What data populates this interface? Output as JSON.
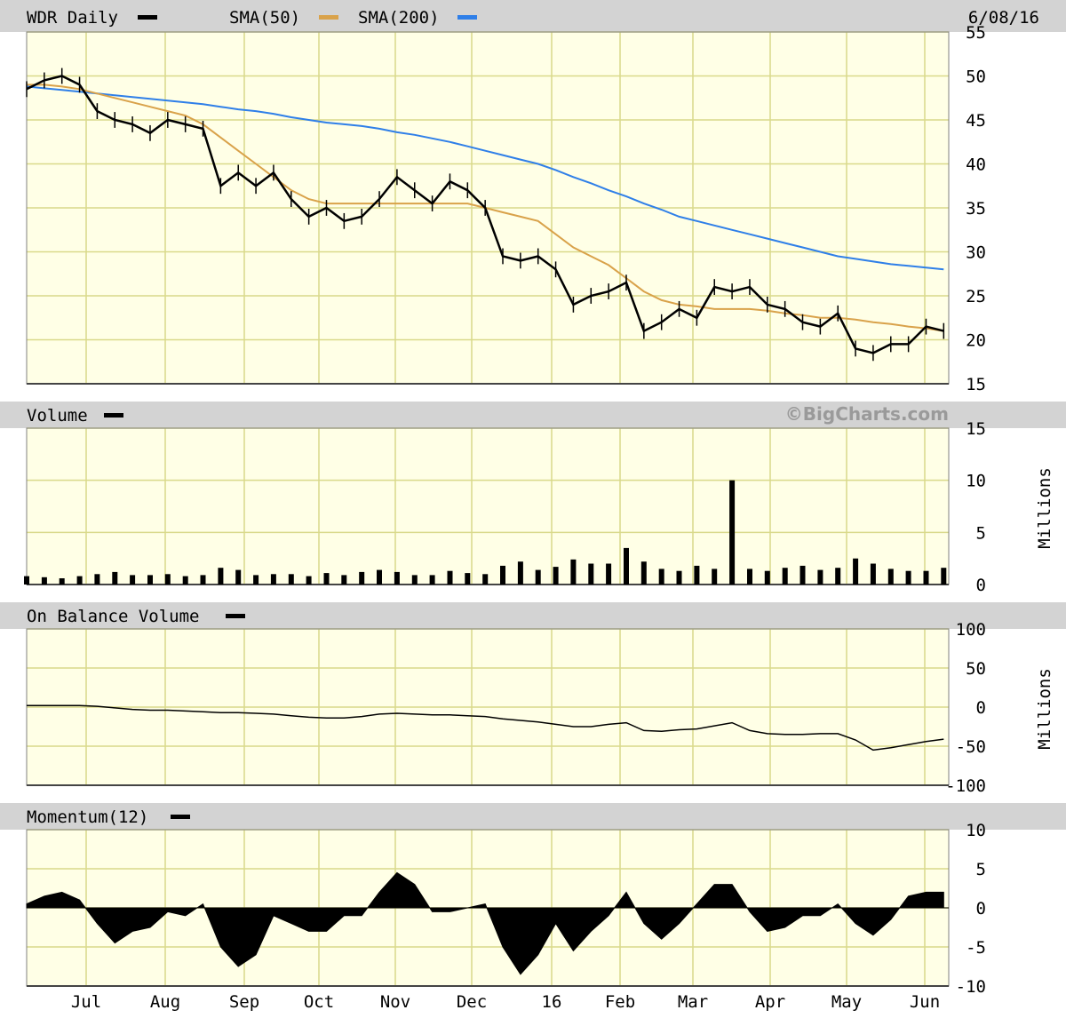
{
  "header": {
    "symbol_label": "WDR Daily",
    "sma50_label": "SMA(50)",
    "sma200_label": "SMA(200)",
    "date": "6/08/16",
    "colors": {
      "price": "#000000",
      "sma50": "#d9a24a",
      "sma200": "#2f7fe8"
    }
  },
  "panels": {
    "volume_title": "Volume",
    "watermark": "©BigCharts.com",
    "obv_title": "On Balance Volume",
    "momentum_title": "Momentum(12)",
    "units_label": "Millions"
  },
  "x_axis": {
    "months": [
      "Jul",
      "Aug",
      "Sep",
      "Oct",
      "Nov",
      "Dec",
      "16",
      "Feb",
      "Mar",
      "Apr",
      "May",
      "Jun"
    ]
  },
  "chart_data": [
    {
      "type": "line",
      "title": "WDR Daily",
      "ylim": [
        15,
        55
      ],
      "yticks": [
        15,
        20,
        25,
        30,
        35,
        40,
        45,
        50,
        55
      ],
      "x": [
        "2015-06-08",
        "2015-06-15",
        "2015-06-22",
        "2015-06-29",
        "2015-07-06",
        "2015-07-13",
        "2015-07-20",
        "2015-07-27",
        "2015-08-03",
        "2015-08-10",
        "2015-08-17",
        "2015-08-24",
        "2015-08-31",
        "2015-09-07",
        "2015-09-14",
        "2015-09-21",
        "2015-09-28",
        "2015-10-05",
        "2015-10-12",
        "2015-10-19",
        "2015-10-26",
        "2015-11-02",
        "2015-11-09",
        "2015-11-16",
        "2015-11-23",
        "2015-11-30",
        "2015-12-07",
        "2015-12-14",
        "2015-12-21",
        "2015-12-28",
        "2016-01-04",
        "2016-01-11",
        "2016-01-18",
        "2016-01-25",
        "2016-02-01",
        "2016-02-08",
        "2016-02-15",
        "2016-02-22",
        "2016-02-29",
        "2016-03-07",
        "2016-03-14",
        "2016-03-21",
        "2016-03-28",
        "2016-04-04",
        "2016-04-11",
        "2016-04-18",
        "2016-04-25",
        "2016-05-02",
        "2016-05-09",
        "2016-05-16",
        "2016-05-23",
        "2016-05-30",
        "2016-06-06"
      ],
      "series": [
        {
          "name": "WDR Daily",
          "values": [
            48.5,
            49.5,
            50.0,
            49.0,
            46.0,
            45.0,
            44.5,
            43.5,
            45.0,
            44.5,
            44.0,
            37.5,
            39.0,
            37.5,
            39.0,
            36.0,
            34.0,
            35.0,
            33.5,
            34.0,
            36.0,
            38.5,
            37.0,
            35.5,
            38.0,
            37.0,
            35.0,
            29.5,
            29.0,
            29.5,
            28.0,
            24.0,
            25.0,
            25.5,
            26.5,
            21.0,
            22.0,
            23.5,
            22.5,
            26.0,
            25.5,
            26.0,
            24.0,
            23.5,
            22.0,
            21.5,
            23.0,
            19.0,
            18.5,
            19.5,
            19.5,
            21.5,
            21.0
          ]
        },
        {
          "name": "SMA(50)",
          "values": [
            49.0,
            49.0,
            48.8,
            48.5,
            48.0,
            47.5,
            47.0,
            46.5,
            46.0,
            45.5,
            44.5,
            43.0,
            41.5,
            40.0,
            38.5,
            37.0,
            36.0,
            35.5,
            35.5,
            35.5,
            35.5,
            35.5,
            35.5,
            35.5,
            35.5,
            35.5,
            35.0,
            34.5,
            34.0,
            33.5,
            32.0,
            30.5,
            29.5,
            28.5,
            27.0,
            25.5,
            24.5,
            24.0,
            23.8,
            23.5,
            23.5,
            23.5,
            23.3,
            23.0,
            22.8,
            22.5,
            22.5,
            22.3,
            22.0,
            21.8,
            21.5,
            21.3,
            21.0
          ]
        },
        {
          "name": "SMA(200)",
          "values": [
            48.8,
            48.6,
            48.4,
            48.2,
            48.0,
            47.8,
            47.6,
            47.4,
            47.2,
            47.0,
            46.8,
            46.5,
            46.2,
            46.0,
            45.7,
            45.3,
            45.0,
            44.7,
            44.5,
            44.3,
            44.0,
            43.6,
            43.3,
            42.9,
            42.5,
            42.0,
            41.5,
            41.0,
            40.5,
            40.0,
            39.3,
            38.5,
            37.8,
            37.0,
            36.3,
            35.5,
            34.8,
            34.0,
            33.5,
            33.0,
            32.5,
            32.0,
            31.5,
            31.0,
            30.5,
            30.0,
            29.5,
            29.2,
            28.9,
            28.6,
            28.4,
            28.2,
            28.0
          ]
        }
      ]
    },
    {
      "type": "bar",
      "title": "Volume",
      "ylabel": "Millions",
      "ylim": [
        0,
        15
      ],
      "yticks": [
        0,
        5,
        10,
        15
      ],
      "x": [
        "2015-06-08",
        "2015-06-15",
        "2015-06-22",
        "2015-06-29",
        "2015-07-06",
        "2015-07-13",
        "2015-07-20",
        "2015-07-27",
        "2015-08-03",
        "2015-08-10",
        "2015-08-17",
        "2015-08-24",
        "2015-08-31",
        "2015-09-07",
        "2015-09-14",
        "2015-09-21",
        "2015-09-28",
        "2015-10-05",
        "2015-10-12",
        "2015-10-19",
        "2015-10-26",
        "2015-11-02",
        "2015-11-09",
        "2015-11-16",
        "2015-11-23",
        "2015-11-30",
        "2015-12-07",
        "2015-12-14",
        "2015-12-21",
        "2015-12-28",
        "2016-01-04",
        "2016-01-11",
        "2016-01-18",
        "2016-01-25",
        "2016-02-01",
        "2016-02-08",
        "2016-02-15",
        "2016-02-22",
        "2016-02-29",
        "2016-03-07",
        "2016-03-14",
        "2016-03-21",
        "2016-03-28",
        "2016-04-04",
        "2016-04-11",
        "2016-04-18",
        "2016-04-25",
        "2016-05-02",
        "2016-05-09",
        "2016-05-16",
        "2016-05-23",
        "2016-05-30",
        "2016-06-06"
      ],
      "series": [
        {
          "name": "Volume",
          "values": [
            0.8,
            0.7,
            0.6,
            0.8,
            1.0,
            1.2,
            0.9,
            0.9,
            1.0,
            0.8,
            0.9,
            1.6,
            1.4,
            0.9,
            1.0,
            1.0,
            0.8,
            1.1,
            0.9,
            1.2,
            1.4,
            1.2,
            0.9,
            0.9,
            1.3,
            1.1,
            1.0,
            1.8,
            2.2,
            1.4,
            1.7,
            2.4,
            2.0,
            2.0,
            3.5,
            2.2,
            1.5,
            1.3,
            1.8,
            1.5,
            10.0,
            1.5,
            1.3,
            1.6,
            1.8,
            1.4,
            1.6,
            2.5,
            2.0,
            1.5,
            1.3,
            1.3,
            1.6
          ]
        }
      ]
    },
    {
      "type": "line",
      "title": "On Balance Volume",
      "ylabel": "Millions",
      "ylim": [
        -100,
        100
      ],
      "yticks": [
        -100,
        -50,
        0,
        50,
        100
      ],
      "x": [
        "2015-06-08",
        "2015-06-15",
        "2015-06-22",
        "2015-06-29",
        "2015-07-06",
        "2015-07-13",
        "2015-07-20",
        "2015-07-27",
        "2015-08-03",
        "2015-08-10",
        "2015-08-17",
        "2015-08-24",
        "2015-08-31",
        "2015-09-07",
        "2015-09-14",
        "2015-09-21",
        "2015-09-28",
        "2015-10-05",
        "2015-10-12",
        "2015-10-19",
        "2015-10-26",
        "2015-11-02",
        "2015-11-09",
        "2015-11-16",
        "2015-11-23",
        "2015-11-30",
        "2015-12-07",
        "2015-12-14",
        "2015-12-21",
        "2015-12-28",
        "2016-01-04",
        "2016-01-11",
        "2016-01-18",
        "2016-01-25",
        "2016-02-01",
        "2016-02-08",
        "2016-02-15",
        "2016-02-22",
        "2016-02-29",
        "2016-03-07",
        "2016-03-14",
        "2016-03-21",
        "2016-03-28",
        "2016-04-04",
        "2016-04-11",
        "2016-04-18",
        "2016-04-25",
        "2016-05-02",
        "2016-05-09",
        "2016-05-16",
        "2016-05-23",
        "2016-05-30",
        "2016-06-06"
      ],
      "series": [
        {
          "name": "On Balance Volume",
          "values": [
            2,
            2,
            2,
            2,
            1,
            -1,
            -3,
            -4,
            -4,
            -5,
            -6,
            -7,
            -7,
            -8,
            -9,
            -11,
            -13,
            -14,
            -14,
            -12,
            -9,
            -8,
            -9,
            -10,
            -10,
            -11,
            -12,
            -15,
            -17,
            -19,
            -22,
            -25,
            -25,
            -22,
            -20,
            -30,
            -31,
            -29,
            -28,
            -24,
            -20,
            -30,
            -34,
            -35,
            -35,
            -34,
            -34,
            -42,
            -55,
            -52,
            -48,
            -44,
            -41
          ]
        }
      ]
    },
    {
      "type": "area",
      "title": "Momentum(12)",
      "ylim": [
        -10,
        10
      ],
      "yticks": [
        -10,
        -5,
        0,
        5,
        10
      ],
      "x": [
        "2015-06-08",
        "2015-06-15",
        "2015-06-22",
        "2015-06-29",
        "2015-07-06",
        "2015-07-13",
        "2015-07-20",
        "2015-07-27",
        "2015-08-03",
        "2015-08-10",
        "2015-08-17",
        "2015-08-24",
        "2015-08-31",
        "2015-09-07",
        "2015-09-14",
        "2015-09-21",
        "2015-09-28",
        "2015-10-05",
        "2015-10-12",
        "2015-10-19",
        "2015-10-26",
        "2015-11-02",
        "2015-11-09",
        "2015-11-16",
        "2015-11-23",
        "2015-11-30",
        "2015-12-07",
        "2015-12-14",
        "2015-12-21",
        "2015-12-28",
        "2016-01-04",
        "2016-01-11",
        "2016-01-18",
        "2016-01-25",
        "2016-02-01",
        "2016-02-08",
        "2016-02-15",
        "2016-02-22",
        "2016-02-29",
        "2016-03-07",
        "2016-03-14",
        "2016-03-21",
        "2016-03-28",
        "2016-04-04",
        "2016-04-11",
        "2016-04-18",
        "2016-04-25",
        "2016-05-02",
        "2016-05-09",
        "2016-05-16",
        "2016-05-23",
        "2016-05-30",
        "2016-06-06"
      ],
      "series": [
        {
          "name": "Momentum(12)",
          "values": [
            0.5,
            1.5,
            2,
            1,
            -2,
            -4.5,
            -3,
            -2.5,
            -0.5,
            -1,
            0.5,
            -5,
            -7.5,
            -6,
            -1,
            -2,
            -3,
            -3,
            -1,
            -1,
            2,
            4.5,
            3,
            -0.5,
            -0.5,
            0,
            0.5,
            -5,
            -8.5,
            -6,
            -2,
            -5.5,
            -3,
            -1,
            2,
            -2,
            -4,
            -2,
            0.5,
            3,
            3,
            -0.5,
            -3,
            -2.5,
            -1,
            -1,
            0.5,
            -2,
            -3.5,
            -1.5,
            1.5,
            2,
            2
          ]
        }
      ]
    }
  ]
}
